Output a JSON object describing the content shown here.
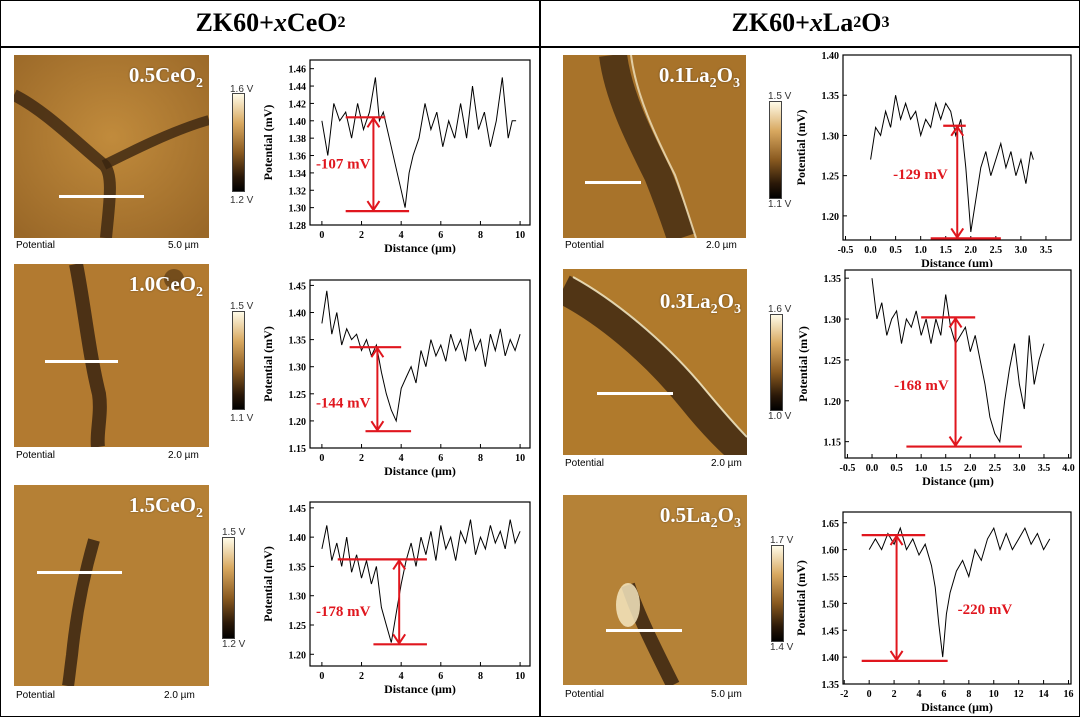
{
  "headers": {
    "left": {
      "prefix": "ZK60+",
      "italic": "x",
      "main": "CeO",
      "sub": "2"
    },
    "right": {
      "prefix": "ZK60+",
      "italic": "x",
      "main": "La",
      "sub": "2",
      "main2": "O",
      "sub2": "3"
    }
  },
  "caption_left_text": "Potential",
  "colors": {
    "arrow": "#e0161e",
    "afm_base": "#b07a2c",
    "afm_boundary": "#3a2410"
  },
  "panels": [
    {
      "key": "p1",
      "label": {
        "main": "0.5CeO",
        "sub": "2"
      },
      "scale": "5.0 µm",
      "cbar_top": "1.6 V",
      "cbar_bot": "1.2 V",
      "drop": "-107 mV"
    },
    {
      "key": "p2",
      "label": {
        "main": "1.0CeO",
        "sub": "2"
      },
      "scale": "2.0 µm",
      "cbar_top": "1.5 V",
      "cbar_bot": "1.1 V",
      "drop": "-144 mV"
    },
    {
      "key": "p3",
      "label": {
        "main": "1.5CeO",
        "sub": "2"
      },
      "scale": "2.0 µm",
      "cbar_top": "1.5 V",
      "cbar_bot": "1.2 V",
      "drop": "-178 mV"
    },
    {
      "key": "p4",
      "label": {
        "main": "0.1La",
        "sub": "2",
        "main2": "O",
        "sub2": "3"
      },
      "scale": "2.0 µm",
      "cbar_top": "1.5 V",
      "cbar_bot": "1.1 V",
      "drop": "-129 mV"
    },
    {
      "key": "p5",
      "label": {
        "main": "0.3La",
        "sub": "2",
        "main2": "O",
        "sub2": "3"
      },
      "scale": "2.0 µm",
      "cbar_top": "1.6 V",
      "cbar_bot": "1.0 V",
      "drop": "-168 mV"
    },
    {
      "key": "p6",
      "label": {
        "main": "0.5La",
        "sub": "2",
        "main2": "O",
        "sub2": "3"
      },
      "scale": "5.0 µm",
      "cbar_top": "1.7 V",
      "cbar_bot": "1.4 V",
      "drop": "-220 mV"
    }
  ],
  "chart_data": [
    {
      "type": "line",
      "xlabel": "Distance (μm)",
      "ylabel": "Potential (mV)",
      "xlim": [
        -0.6,
        10.5
      ],
      "ylim": [
        1.28,
        1.47
      ],
      "xticks": [
        0,
        2,
        4,
        6,
        8,
        10
      ],
      "yticks": [
        1.28,
        1.3,
        1.32,
        1.34,
        1.36,
        1.38,
        1.4,
        1.42,
        1.44,
        1.46
      ],
      "ydec": 2,
      "xdec": 0,
      "series": [
        {
          "x": [
            0,
            0.3,
            0.6,
            0.9,
            1.2,
            1.5,
            1.8,
            2.1,
            2.4,
            2.7,
            2.9,
            3.1,
            3.4,
            3.7,
            4.0,
            4.2,
            4.4,
            4.6,
            4.9,
            5.2,
            5.5,
            5.8,
            6.1,
            6.4,
            6.7,
            7.0,
            7.3,
            7.6,
            7.9,
            8.2,
            8.5,
            8.8,
            9.1,
            9.4,
            9.6,
            9.8
          ],
          "y": [
            1.4,
            1.36,
            1.42,
            1.4,
            1.41,
            1.38,
            1.42,
            1.39,
            1.41,
            1.45,
            1.4,
            1.41,
            1.38,
            1.35,
            1.32,
            1.3,
            1.34,
            1.36,
            1.38,
            1.42,
            1.39,
            1.41,
            1.37,
            1.4,
            1.38,
            1.42,
            1.38,
            1.44,
            1.39,
            1.41,
            1.37,
            1.4,
            1.45,
            1.38,
            1.4,
            1.4
          ]
        }
      ],
      "arrow": {
        "x": 2.6,
        "y_top": 1.404,
        "y_bot": 1.296,
        "h_top": [
          1.2,
          3.2
        ],
        "h_bot": [
          1.2,
          4.4
        ]
      },
      "drop_pos": {
        "x": -0.3,
        "y": 1.345
      }
    },
    {
      "type": "line",
      "xlabel": "Distance (μm)",
      "ylabel": "Potential (mV)",
      "xlim": [
        -0.6,
        10.5
      ],
      "ylim": [
        1.15,
        1.46
      ],
      "xticks": [
        0,
        2,
        4,
        6,
        8,
        10
      ],
      "yticks": [
        1.15,
        1.2,
        1.25,
        1.3,
        1.35,
        1.4,
        1.45
      ],
      "ydec": 2,
      "xdec": 0,
      "series": [
        {
          "x": [
            0,
            0.25,
            0.5,
            0.75,
            1.0,
            1.25,
            1.5,
            1.75,
            2.0,
            2.25,
            2.5,
            2.75,
            3.0,
            3.25,
            3.5,
            3.75,
            4.0,
            4.25,
            4.5,
            4.75,
            5.0,
            5.25,
            5.5,
            5.75,
            6.0,
            6.25,
            6.5,
            6.75,
            7.0,
            7.25,
            7.5,
            7.75,
            8.0,
            8.25,
            8.5,
            8.75,
            9.0,
            9.25,
            9.5,
            9.75,
            10.0
          ],
          "y": [
            1.38,
            1.44,
            1.36,
            1.4,
            1.34,
            1.37,
            1.35,
            1.36,
            1.33,
            1.35,
            1.32,
            1.34,
            1.29,
            1.25,
            1.22,
            1.2,
            1.26,
            1.28,
            1.3,
            1.27,
            1.33,
            1.3,
            1.35,
            1.32,
            1.34,
            1.31,
            1.36,
            1.33,
            1.35,
            1.31,
            1.37,
            1.33,
            1.35,
            1.3,
            1.36,
            1.33,
            1.37,
            1.32,
            1.35,
            1.33,
            1.36
          ]
        }
      ],
      "arrow": {
        "x": 2.8,
        "y_top": 1.336,
        "y_bot": 1.181,
        "h_top": [
          1.4,
          4.0
        ],
        "h_bot": [
          2.2,
          4.5
        ]
      },
      "drop_pos": {
        "x": -0.3,
        "y": 1.225
      }
    },
    {
      "type": "line",
      "xlabel": "Distance (μm)",
      "ylabel": "Potential (mV)",
      "xlim": [
        -0.6,
        10.5
      ],
      "ylim": [
        1.18,
        1.46
      ],
      "xticks": [
        0,
        2,
        4,
        6,
        8,
        10
      ],
      "yticks": [
        1.2,
        1.25,
        1.3,
        1.35,
        1.4,
        1.45
      ],
      "ydec": 2,
      "xdec": 0,
      "series": [
        {
          "x": [
            0,
            0.25,
            0.5,
            0.75,
            1.0,
            1.25,
            1.5,
            1.75,
            2.0,
            2.25,
            2.5,
            2.75,
            3.0,
            3.25,
            3.5,
            3.75,
            4.0,
            4.25,
            4.5,
            4.75,
            5.0,
            5.25,
            5.5,
            5.75,
            6.0,
            6.25,
            6.5,
            6.75,
            7.0,
            7.25,
            7.5,
            7.75,
            8.0,
            8.25,
            8.5,
            8.75,
            9.0,
            9.25,
            9.5,
            9.75,
            10.0
          ],
          "y": [
            1.38,
            1.42,
            1.36,
            1.39,
            1.35,
            1.4,
            1.34,
            1.37,
            1.33,
            1.36,
            1.32,
            1.35,
            1.28,
            1.25,
            1.22,
            1.27,
            1.32,
            1.36,
            1.39,
            1.35,
            1.4,
            1.37,
            1.41,
            1.36,
            1.42,
            1.38,
            1.4,
            1.36,
            1.41,
            1.39,
            1.43,
            1.37,
            1.4,
            1.38,
            1.42,
            1.39,
            1.41,
            1.38,
            1.43,
            1.39,
            1.41
          ]
        }
      ],
      "arrow": {
        "x": 3.9,
        "y_top": 1.362,
        "y_bot": 1.217,
        "h_top": [
          0.8,
          5.3
        ],
        "h_bot": [
          2.6,
          5.3
        ]
      },
      "drop_pos": {
        "x": -0.3,
        "y": 1.265
      }
    },
    {
      "type": "line",
      "xlabel": "Distance (μm)",
      "ylabel": "Potential (mV)",
      "xlim": [
        -0.55,
        4.0
      ],
      "ylim": [
        1.17,
        1.4
      ],
      "xticks": [
        -0.5,
        0.0,
        0.5,
        1.0,
        1.5,
        2.0,
        2.5,
        3.0,
        3.5
      ],
      "yticks": [
        1.2,
        1.25,
        1.3,
        1.35,
        1.4
      ],
      "ydec": 2,
      "xdec": 1,
      "series": [
        {
          "x": [
            0,
            0.1,
            0.2,
            0.3,
            0.4,
            0.5,
            0.6,
            0.7,
            0.8,
            0.9,
            1.0,
            1.1,
            1.2,
            1.3,
            1.4,
            1.5,
            1.6,
            1.7,
            1.8,
            1.9,
            2.0,
            2.1,
            2.2,
            2.3,
            2.4,
            2.5,
            2.6,
            2.7,
            2.8,
            2.9,
            3.0,
            3.1,
            3.2,
            3.25
          ],
          "y": [
            1.27,
            1.31,
            1.3,
            1.33,
            1.31,
            1.35,
            1.32,
            1.34,
            1.32,
            1.33,
            1.3,
            1.32,
            1.31,
            1.34,
            1.32,
            1.34,
            1.33,
            1.3,
            1.32,
            1.26,
            1.18,
            1.22,
            1.26,
            1.28,
            1.25,
            1.27,
            1.29,
            1.26,
            1.28,
            1.25,
            1.27,
            1.24,
            1.28,
            1.27
          ]
        }
      ],
      "arrow": {
        "x": 1.73,
        "y_top": 1.312,
        "y_bot": 1.172,
        "h_top": [
          1.45,
          1.9
        ],
        "h_bot": [
          1.2,
          2.6
        ]
      },
      "drop_pos": {
        "x": 0.45,
        "y": 1.246
      }
    },
    {
      "type": "line",
      "xlabel": "Distance (μm)",
      "ylabel": "Potential (mV)",
      "xlim": [
        -0.55,
        4.05
      ],
      "ylim": [
        1.13,
        1.36
      ],
      "xticks": [
        -0.5,
        0.0,
        0.5,
        1.0,
        1.5,
        2.0,
        2.5,
        3.0,
        3.5,
        4.0
      ],
      "yticks": [
        1.15,
        1.2,
        1.25,
        1.3,
        1.35
      ],
      "ydec": 2,
      "xdec": 1,
      "series": [
        {
          "x": [
            0,
            0.1,
            0.2,
            0.3,
            0.4,
            0.5,
            0.6,
            0.7,
            0.8,
            0.9,
            1.0,
            1.1,
            1.2,
            1.3,
            1.4,
            1.5,
            1.6,
            1.7,
            1.8,
            1.9,
            2.0,
            2.1,
            2.2,
            2.3,
            2.4,
            2.5,
            2.6,
            2.7,
            2.8,
            2.9,
            3.0,
            3.1,
            3.2,
            3.3,
            3.4,
            3.5
          ],
          "y": [
            1.35,
            1.3,
            1.32,
            1.28,
            1.3,
            1.31,
            1.27,
            1.3,
            1.29,
            1.31,
            1.28,
            1.3,
            1.27,
            1.3,
            1.28,
            1.33,
            1.29,
            1.27,
            1.28,
            1.29,
            1.26,
            1.28,
            1.25,
            1.22,
            1.18,
            1.16,
            1.15,
            1.2,
            1.24,
            1.27,
            1.22,
            1.19,
            1.28,
            1.22,
            1.25,
            1.27
          ]
        }
      ],
      "arrow": {
        "x": 1.7,
        "y_top": 1.302,
        "y_bot": 1.144,
        "h_top": [
          1.0,
          2.1
        ],
        "h_bot": [
          0.7,
          3.05
        ]
      },
      "drop_pos": {
        "x": 0.45,
        "y": 1.213
      }
    },
    {
      "type": "line",
      "xlabel": "Distance (μm)",
      "ylabel": "Potential (mV)",
      "xlim": [
        -2.1,
        16.2
      ],
      "ylim": [
        1.35,
        1.67
      ],
      "xticks": [
        -2,
        0,
        2,
        4,
        6,
        8,
        10,
        12,
        14,
        16
      ],
      "yticks": [
        1.35,
        1.4,
        1.45,
        1.5,
        1.55,
        1.6,
        1.65
      ],
      "ydec": 2,
      "xdec": 0,
      "series": [
        {
          "x": [
            0,
            0.5,
            1,
            1.5,
            2,
            2.5,
            3,
            3.5,
            4,
            4.5,
            5,
            5.3,
            5.6,
            5.9,
            6.2,
            6.5,
            7,
            7.5,
            8,
            8.5,
            9,
            9.5,
            10,
            10.5,
            11,
            11.5,
            12,
            12.5,
            13,
            13.5,
            14,
            14.5
          ],
          "y": [
            1.6,
            1.62,
            1.6,
            1.63,
            1.61,
            1.64,
            1.6,
            1.62,
            1.59,
            1.61,
            1.57,
            1.53,
            1.46,
            1.4,
            1.48,
            1.52,
            1.56,
            1.58,
            1.55,
            1.6,
            1.58,
            1.62,
            1.64,
            1.6,
            1.63,
            1.6,
            1.62,
            1.64,
            1.61,
            1.63,
            1.6,
            1.62
          ]
        }
      ],
      "arrow": {
        "x": 2.2,
        "y_top": 1.627,
        "y_bot": 1.393,
        "h_top": [
          -0.6,
          4.5
        ],
        "h_bot": [
          -0.6,
          6.3
        ]
      },
      "drop_pos": {
        "x": 7.1,
        "y": 1.48
      }
    }
  ]
}
